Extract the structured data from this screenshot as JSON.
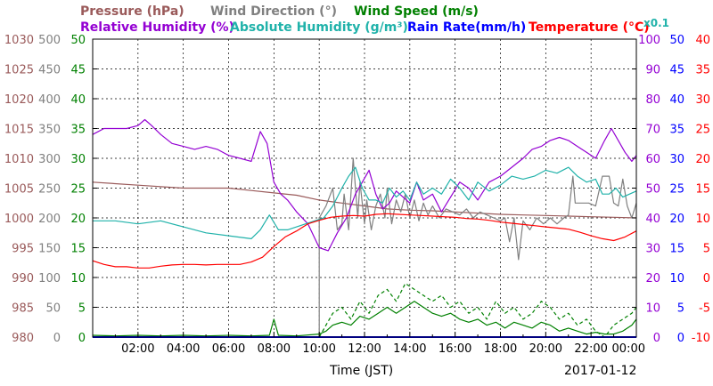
{
  "chart_data": {
    "type": "line",
    "date": "2017-01-12",
    "xlabel": "Time (JST)",
    "x_ticks": [
      "02:00",
      "04:00",
      "06:00",
      "08:00",
      "10:00",
      "12:00",
      "14:00",
      "16:00",
      "18:00",
      "20:00",
      "22:00",
      "00:00"
    ],
    "xlim_hours": [
      0,
      24
    ],
    "grid": true,
    "colors": {
      "pressure": "#9a5a5a",
      "wind_direction": "#808080",
      "wind_speed": "#008000",
      "relative_humidity": "#9400d3",
      "absolute_humidity": "#20b2aa",
      "rain_rate": "#0000ff",
      "temperature": "#ff0000"
    },
    "legend": {
      "row1": [
        {
          "key": "pressure",
          "text": "Pressure (hPa)"
        },
        {
          "key": "wind_direction",
          "text": "Wind Direction (°)"
        },
        {
          "key": "wind_speed",
          "text": "Wind Speed (m/s)"
        }
      ],
      "row2": [
        {
          "key": "relative_humidity",
          "text": "Relative Humidity (%)"
        },
        {
          "key": "absolute_humidity",
          "text": "Absolute Humidity (g/m³)"
        },
        {
          "key": "rain_rate",
          "text": "Rain Rate(mm/h)"
        },
        {
          "key": "temperature",
          "text": "Temperature (°C)"
        }
      ],
      "abs_humidity_scale": "x0.1"
    },
    "axes": {
      "pressure": {
        "ylim": [
          980,
          1030
        ],
        "ticks": [
          "1030",
          "1025",
          "1020",
          "1015",
          "1010",
          "1005",
          "1000",
          "995",
          "990",
          "985",
          "980"
        ]
      },
      "wind_direction": {
        "ylim": [
          0,
          500
        ],
        "ticks": [
          "500",
          "450",
          "400",
          "350",
          "300",
          "250",
          "200",
          "150",
          "100",
          "50",
          "0"
        ]
      },
      "wind_speed": {
        "ylim": [
          0,
          50
        ],
        "ticks": [
          "50",
          "45",
          "40",
          "35",
          "30",
          "25",
          "20",
          "15",
          "10",
          "5",
          "0"
        ]
      },
      "relative_humidity": {
        "ylim": [
          0,
          100
        ],
        "ticks": [
          "100",
          "90",
          "80",
          "70",
          "60",
          "50",
          "40",
          "30",
          "20",
          "10",
          "0"
        ]
      },
      "rain_rate": {
        "ylim": [
          0,
          50
        ],
        "ticks": [
          "50",
          "45",
          "40",
          "35",
          "30",
          "25",
          "20",
          "15",
          "10",
          "5",
          "0"
        ]
      },
      "temperature": {
        "ylim": [
          -10,
          40
        ],
        "ticks": [
          "40",
          "35",
          "30",
          "25",
          "20",
          "15",
          "10",
          "5",
          "0",
          "-5",
          "-10"
        ]
      }
    },
    "series": [
      {
        "key": "pressure",
        "axis": "pressure",
        "style": "solid",
        "x": [
          0,
          2,
          4,
          6,
          7,
          8,
          9,
          10,
          11,
          12,
          13,
          14,
          15,
          16,
          17,
          18,
          19,
          20,
          21,
          22,
          23,
          24
        ],
        "y": [
          1006,
          1005.5,
          1005,
          1005,
          1004.6,
          1004.2,
          1003.8,
          1003,
          1002.5,
          1002,
          1001.5,
          1001.3,
          1001.2,
          1001,
          1000.8,
          1000.6,
          1000.5,
          1000.4,
          1000.3,
          1000.2,
          1000.1,
          1000
        ]
      },
      {
        "key": "wind_direction",
        "axis": "wind_direction",
        "style": "solid",
        "x": [
          10.0,
          10.0,
          10.3,
          10.6,
          10.8,
          11.0,
          11.1,
          11.3,
          11.5,
          11.7,
          11.8,
          12.0,
          12.1,
          12.3,
          12.5,
          12.7,
          12.9,
          13.0,
          13.2,
          13.4,
          13.6,
          13.8,
          14.0,
          14.2,
          14.4,
          14.6,
          14.8,
          15.0,
          15.3,
          15.6,
          15.9,
          16.2,
          16.5,
          16.8,
          17.1,
          17.4,
          17.7,
          18.0,
          18.2,
          18.4,
          18.6,
          18.8,
          19.0,
          19.3,
          19.6,
          19.9,
          20.2,
          20.5,
          20.8,
          21.0,
          21.2,
          21.3,
          21.6,
          21.9,
          22.2,
          22.5,
          22.8,
          23.0,
          23.2,
          23.4,
          23.6,
          23.8,
          24.0
        ],
        "y": [
          0,
          200,
          220,
          250,
          180,
          190,
          240,
          180,
          300,
          200,
          260,
          190,
          230,
          180,
          220,
          240,
          200,
          250,
          190,
          230,
          210,
          240,
          200,
          230,
          195,
          225,
          205,
          220,
          200,
          215,
          210,
          205,
          215,
          200,
          210,
          205,
          200,
          195,
          200,
          160,
          200,
          130,
          195,
          180,
          200,
          190,
          200,
          190,
          200,
          205,
          270,
          225,
          225,
          225,
          220,
          270,
          270,
          225,
          220,
          265,
          220,
          200,
          225
        ]
      },
      {
        "key": "wind_speed_gust",
        "axis": "wind_speed",
        "style": "dashed",
        "x": [
          10,
          10.3,
          10.6,
          11,
          11.4,
          11.8,
          12.2,
          12.6,
          13,
          13.4,
          13.8,
          14.2,
          14.6,
          15,
          15.4,
          15.8,
          16.2,
          16.6,
          17,
          17.4,
          17.8,
          18.2,
          18.6,
          19,
          19.4,
          19.8,
          20.2,
          20.6,
          21,
          21.4,
          21.8,
          22.2,
          22.6,
          23,
          23.4,
          23.8,
          24
        ],
        "y": [
          0,
          2,
          4,
          5,
          3,
          6,
          4,
          7,
          8,
          6,
          9,
          8,
          7,
          6,
          7,
          5,
          6,
          4,
          5,
          3,
          6,
          4,
          5,
          3,
          4,
          6,
          5,
          3,
          4,
          2,
          3,
          1,
          0,
          2,
          3,
          4,
          5
        ]
      },
      {
        "key": "wind_speed",
        "axis": "wind_speed",
        "style": "solid",
        "x": [
          0,
          1,
          2,
          3,
          4,
          5,
          6,
          7,
          7.8,
          8,
          8.2,
          9,
          10,
          10.3,
          10.6,
          11,
          11.4,
          11.8,
          12.2,
          12.6,
          13,
          13.4,
          13.8,
          14.2,
          14.6,
          15,
          15.4,
          15.8,
          16.2,
          16.6,
          17,
          17.4,
          17.8,
          18.2,
          18.6,
          19,
          19.4,
          19.8,
          20.2,
          20.6,
          21,
          21.4,
          21.8,
          22.2,
          22.6,
          23,
          23.4,
          23.8,
          24
        ],
        "y": [
          0.3,
          0.2,
          0.3,
          0.2,
          0.3,
          0.2,
          0.3,
          0.2,
          0.3,
          3,
          0.3,
          0.2,
          0.5,
          1,
          2,
          2.5,
          2,
          3.5,
          3,
          4,
          5,
          4,
          5,
          6,
          5,
          4,
          3.5,
          4,
          3,
          2.5,
          3,
          2,
          2.5,
          1.5,
          2.5,
          2,
          1.5,
          2.5,
          2,
          1,
          1.5,
          1,
          0.5,
          0.8,
          0.5,
          0.5,
          1,
          2,
          3
        ]
      },
      {
        "key": "relative_humidity",
        "axis": "relative_humidity",
        "style": "solid",
        "x": [
          0,
          0.5,
          1,
          1.5,
          2,
          2.3,
          2.6,
          3,
          3.5,
          4,
          4.5,
          5,
          5.5,
          6,
          6.5,
          7,
          7.4,
          7.7,
          8,
          8.3,
          8.6,
          9,
          9.5,
          10,
          10.4,
          10.8,
          11.2,
          11.6,
          11.9,
          12.2,
          12.5,
          12.8,
          13.1,
          13.4,
          13.7,
          14,
          14.3,
          14.6,
          15,
          15.4,
          15.8,
          16.2,
          16.6,
          17,
          17.5,
          18,
          18.5,
          19,
          19.4,
          19.8,
          20.2,
          20.6,
          21,
          21.4,
          21.8,
          22.2,
          22.6,
          22.9,
          23.2,
          23.5,
          23.8,
          24
        ],
        "y": [
          68,
          70,
          70,
          70,
          71,
          73,
          71,
          68,
          65,
          64,
          63,
          64,
          63,
          61,
          60,
          59,
          69,
          65,
          52,
          48,
          46,
          42,
          38,
          30,
          29,
          35,
          40,
          48,
          52,
          56,
          48,
          43,
          45,
          49,
          47,
          45,
          52,
          46,
          48,
          42,
          47,
          52,
          50,
          46,
          52,
          54,
          57,
          60,
          63,
          64,
          66,
          67,
          66,
          64,
          62,
          60,
          66,
          70,
          66,
          62,
          59,
          61
        ]
      },
      {
        "key": "absolute_humidity",
        "axis": "wind_speed",
        "style": "solid",
        "x": [
          0,
          1,
          2,
          3,
          4,
          5,
          6,
          7,
          7.4,
          7.8,
          8.2,
          8.6,
          9,
          9.4,
          9.8,
          10.2,
          10.6,
          11,
          11.3,
          11.6,
          11.9,
          12.2,
          12.5,
          12.8,
          13.1,
          13.4,
          13.7,
          14,
          14.3,
          14.6,
          15,
          15.4,
          15.8,
          16.2,
          16.6,
          17,
          17.5,
          18,
          18.5,
          19,
          19.5,
          20,
          20.5,
          21,
          21.4,
          21.8,
          22.2,
          22.5,
          22.8,
          23.1,
          23.4,
          23.7,
          24
        ],
        "y": [
          19.5,
          19.5,
          19,
          19.5,
          18.5,
          17.5,
          17,
          16.5,
          18,
          20.5,
          18,
          18,
          18.5,
          19,
          19.5,
          20,
          22,
          25,
          27,
          28.5,
          25,
          23,
          23,
          22.5,
          25,
          23.5,
          24.5,
          23,
          26,
          24,
          25,
          24,
          26.5,
          25,
          23,
          26,
          24.5,
          25.5,
          27,
          26.5,
          27,
          28,
          27.5,
          28.5,
          27,
          26,
          26.5,
          24,
          24,
          25,
          23.5,
          24,
          24.5
        ]
      },
      {
        "key": "rain_rate",
        "axis": "rain_rate",
        "style": "solid",
        "x": [
          0,
          24
        ],
        "y": [
          0,
          0
        ]
      },
      {
        "key": "temperature",
        "axis": "temperature",
        "style": "solid",
        "x": [
          0,
          0.5,
          1,
          1.5,
          2,
          2.5,
          3,
          3.5,
          4,
          4.5,
          5,
          5.5,
          6,
          6.5,
          7,
          7.5,
          8,
          8.5,
          9,
          9.5,
          10,
          10.5,
          11,
          11.5,
          12,
          12.5,
          13,
          13.5,
          14,
          14.5,
          15,
          15.5,
          16,
          16.5,
          17,
          17.5,
          18,
          18.5,
          19,
          19.5,
          20,
          20.5,
          21,
          21.5,
          22,
          22.5,
          23,
          23.5,
          24
        ],
        "y": [
          2.8,
          2.2,
          1.8,
          1.8,
          1.6,
          1.6,
          1.9,
          2.1,
          2.2,
          2.2,
          2.1,
          2.2,
          2.2,
          2.2,
          2.6,
          3.4,
          5.2,
          6.8,
          7.8,
          9.0,
          9.6,
          10.1,
          10.3,
          10.4,
          10.3,
          10.6,
          10.7,
          10.6,
          10.5,
          10.4,
          10.3,
          10.2,
          10.1,
          9.9,
          9.8,
          9.6,
          9.3,
          9.1,
          8.9,
          8.7,
          8.5,
          8.3,
          8.1,
          7.6,
          7.0,
          6.5,
          6.2,
          6.8,
          7.8
        ]
      }
    ]
  }
}
